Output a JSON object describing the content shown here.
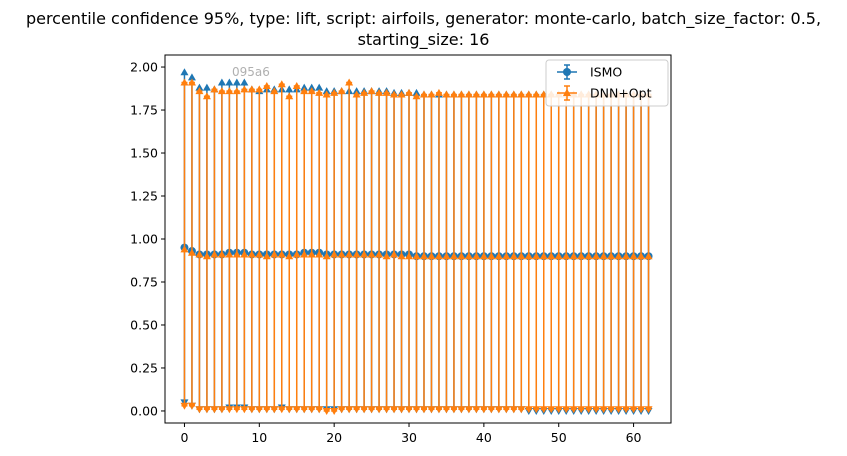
{
  "chart_data": {
    "type": "scatter",
    "title_line1": "percentile confidence 95%, type: lift, script: airfoils, generator: monte-carlo, batch_size_factor: 0.5,",
    "title_line2": "starting_size: 16",
    "xlabel": "",
    "ylabel": "",
    "xlim": [
      -2.6,
      65.0
    ],
    "ylim": [
      -0.07,
      2.07
    ],
    "xticks": [
      0,
      10,
      20,
      30,
      40,
      50,
      60
    ],
    "yticks": [
      0.0,
      0.25,
      0.5,
      0.75,
      1.0,
      1.25,
      1.5,
      1.75,
      2.0
    ],
    "grid": false,
    "legend_position": "top-right",
    "watermark_text": "095a6",
    "x": [
      0,
      1,
      2,
      3,
      4,
      5,
      6,
      7,
      8,
      9,
      10,
      11,
      12,
      13,
      14,
      15,
      16,
      17,
      18,
      19,
      20,
      21,
      22,
      23,
      24,
      25,
      26,
      27,
      28,
      29,
      30,
      31,
      32,
      33,
      34,
      35,
      36,
      37,
      38,
      39,
      40,
      41,
      42,
      43,
      44,
      45,
      46,
      47,
      48,
      49,
      50,
      51,
      52,
      53,
      54,
      55,
      56,
      57,
      58,
      59,
      60,
      61,
      62
    ],
    "series": [
      {
        "name": "ISMO",
        "color": "#1f77b4",
        "marker": "circle",
        "mean": [
          0.95,
          0.93,
          0.91,
          0.91,
          0.91,
          0.91,
          0.92,
          0.92,
          0.92,
          0.91,
          0.91,
          0.91,
          0.91,
          0.91,
          0.91,
          0.91,
          0.92,
          0.92,
          0.92,
          0.91,
          0.91,
          0.91,
          0.91,
          0.91,
          0.91,
          0.91,
          0.91,
          0.91,
          0.91,
          0.91,
          0.91,
          0.9,
          0.9,
          0.9,
          0.9,
          0.9,
          0.9,
          0.9,
          0.9,
          0.9,
          0.9,
          0.9,
          0.9,
          0.9,
          0.9,
          0.9,
          0.9,
          0.9,
          0.9,
          0.9,
          0.9,
          0.9,
          0.9,
          0.9,
          0.9,
          0.9,
          0.9,
          0.9,
          0.9,
          0.9,
          0.9,
          0.9,
          0.9
        ],
        "upper": [
          1.97,
          1.94,
          1.88,
          1.88,
          1.87,
          1.91,
          1.91,
          1.91,
          1.91,
          1.87,
          1.86,
          1.87,
          1.87,
          1.87,
          1.87,
          1.87,
          1.88,
          1.88,
          1.88,
          1.86,
          1.86,
          1.86,
          1.86,
          1.86,
          1.86,
          1.86,
          1.86,
          1.86,
          1.85,
          1.85,
          1.85,
          1.85,
          1.84,
          1.84,
          1.84,
          1.84,
          1.84,
          1.84,
          1.84,
          1.84,
          1.84,
          1.84,
          1.84,
          1.84,
          1.84,
          1.84,
          1.84,
          1.84,
          1.84,
          1.84,
          1.84,
          1.84,
          1.84,
          1.84,
          1.84,
          1.84,
          1.84,
          1.84,
          1.84,
          1.84,
          1.84,
          1.84,
          1.84
        ],
        "lower": [
          0.05,
          0.03,
          0.01,
          0.01,
          0.01,
          0.01,
          0.02,
          0.02,
          0.02,
          0.01,
          0.01,
          0.01,
          0.01,
          0.02,
          0.01,
          0.01,
          0.01,
          0.01,
          0.01,
          0.01,
          0.01,
          0.01,
          0.01,
          0.01,
          0.01,
          0.01,
          0.01,
          0.01,
          0.01,
          0.01,
          0.01,
          0.01,
          0.01,
          0.01,
          0.01,
          0.01,
          0.01,
          0.01,
          0.01,
          0.01,
          0.01,
          0.01,
          0.01,
          0.01,
          0.01,
          0.01,
          0.0,
          0.0,
          0.0,
          0.0,
          0.0,
          0.0,
          0.0,
          0.0,
          0.0,
          0.0,
          0.0,
          0.0,
          0.0,
          0.0,
          0.0,
          0.0,
          0.0
        ]
      },
      {
        "name": "DNN+Opt",
        "color": "#ff7f0e",
        "marker": "triangle",
        "mean": [
          0.94,
          0.92,
          0.91,
          0.9,
          0.91,
          0.91,
          0.91,
          0.91,
          0.91,
          0.91,
          0.91,
          0.9,
          0.91,
          0.91,
          0.9,
          0.91,
          0.91,
          0.91,
          0.91,
          0.9,
          0.91,
          0.91,
          0.91,
          0.91,
          0.91,
          0.91,
          0.91,
          0.9,
          0.91,
          0.9,
          0.9,
          0.9,
          0.9,
          0.9,
          0.9,
          0.9,
          0.9,
          0.9,
          0.9,
          0.9,
          0.9,
          0.9,
          0.9,
          0.9,
          0.9,
          0.9,
          0.9,
          0.9,
          0.9,
          0.9,
          0.9,
          0.9,
          0.9,
          0.9,
          0.9,
          0.9,
          0.9,
          0.9,
          0.9,
          0.9,
          0.9,
          0.9,
          0.9
        ],
        "upper": [
          1.91,
          1.91,
          1.86,
          1.83,
          1.87,
          1.86,
          1.86,
          1.86,
          1.87,
          1.87,
          1.87,
          1.89,
          1.86,
          1.9,
          1.83,
          1.89,
          1.86,
          1.86,
          1.85,
          1.84,
          1.85,
          1.86,
          1.91,
          1.84,
          1.85,
          1.86,
          1.85,
          1.85,
          1.84,
          1.84,
          1.85,
          1.83,
          1.84,
          1.84,
          1.85,
          1.84,
          1.84,
          1.84,
          1.84,
          1.84,
          1.84,
          1.84,
          1.84,
          1.84,
          1.84,
          1.84,
          1.84,
          1.84,
          1.84,
          1.84,
          1.84,
          1.84,
          1.84,
          1.84,
          1.84,
          1.84,
          1.84,
          1.84,
          1.84,
          1.84,
          1.84,
          1.84,
          1.84
        ],
        "lower": [
          0.03,
          0.03,
          0.01,
          0.01,
          0.01,
          0.01,
          0.01,
          0.01,
          0.01,
          0.01,
          0.01,
          0.01,
          0.01,
          0.01,
          0.01,
          0.01,
          0.01,
          0.01,
          0.01,
          0.0,
          0.0,
          0.01,
          0.01,
          0.01,
          0.01,
          0.01,
          0.01,
          0.01,
          0.01,
          0.01,
          0.01,
          0.01,
          0.01,
          0.01,
          0.01,
          0.01,
          0.01,
          0.01,
          0.01,
          0.01,
          0.01,
          0.01,
          0.01,
          0.01,
          0.01,
          0.01,
          0.01,
          0.01,
          0.01,
          0.01,
          0.01,
          0.01,
          0.01,
          0.01,
          0.01,
          0.01,
          0.01,
          0.01,
          0.01,
          0.01,
          0.01,
          0.01,
          0.01
        ]
      }
    ]
  }
}
